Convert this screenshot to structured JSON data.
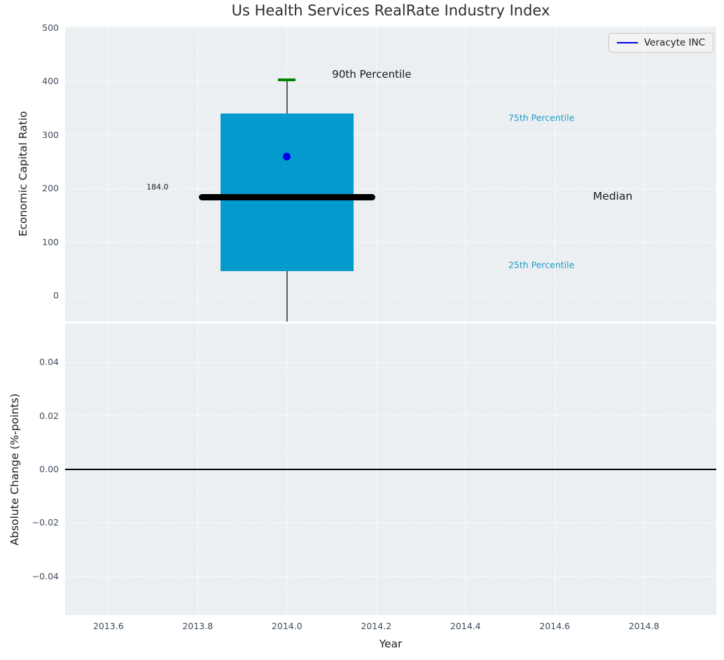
{
  "figure": {
    "title": "Us Health Services RealRate Industry Index",
    "background": "#ffffff",
    "axes_background": "#eceff1"
  },
  "legend": {
    "label": "Veracyte INC",
    "line_color": "#0000ff",
    "position": "upper right"
  },
  "chart_data": [
    {
      "type": "box",
      "title": "Us Health Services RealRate Industry Index",
      "ylabel": "Economic Capital Ratio",
      "xlim": [
        2013.503,
        2014.962
      ],
      "ylim": [
        -48.4,
        502.6
      ],
      "grid": true,
      "yticks": [
        0,
        100,
        200,
        300,
        400,
        500
      ],
      "ytick_labels": [
        "0",
        "100",
        "200",
        "300",
        "400",
        "500"
      ],
      "xticks": [
        2013.6,
        2013.8,
        2014.0,
        2014.2,
        2014.4,
        2014.6,
        2014.8
      ],
      "box": {
        "x": 2014.0,
        "box_halfwidth": 0.149,
        "median_line_halfwidth": 0.198,
        "cap_halfwidth": 0.0195,
        "q1": 46,
        "median": 184.0,
        "q3": 340,
        "p90": 403,
        "whisker_extends_below_axis": true,
        "median_label": "184.0",
        "box_color": "#049acd",
        "median_color": "#000000",
        "cap_color": "#008000",
        "whisker_color": "#5f5f5f"
      },
      "points": [
        {
          "name": "Veracyte INC",
          "x": 2014.0,
          "y": 260,
          "color": "#0000f0"
        }
      ],
      "annotations": [
        {
          "text": "90th Percentile",
          "x": 2014.19,
          "y": 413,
          "color": "#1a1a1a",
          "size": 15
        },
        {
          "text": "75th Percentile",
          "x": 2014.57,
          "y": 333,
          "color": "#1d9bc9",
          "size": 12.5
        },
        {
          "text": "Median",
          "x": 2014.73,
          "y": 186,
          "color": "#1a1a1a",
          "size": 15.5
        },
        {
          "text": "25th Percentile",
          "x": 2014.57,
          "y": 58,
          "color": "#1d9bc9",
          "size": 12.5
        },
        {
          "text": "184.0",
          "x": 2013.71,
          "y": 203,
          "color": "#1a1a1a",
          "size": 11
        }
      ]
    },
    {
      "type": "line",
      "ylabel": "Absolute Change (%-points)",
      "xlabel": "Year",
      "xlim": [
        2013.503,
        2014.962
      ],
      "ylim": [
        -0.0545,
        0.0545
      ],
      "grid": true,
      "yticks": [
        0.04,
        0.02,
        0.0,
        -0.02,
        -0.04
      ],
      "ytick_labels": [
        "0.04",
        "0.02",
        "0.00",
        "−0.02",
        "−0.04"
      ],
      "xticks": [
        2013.6,
        2013.8,
        2014.0,
        2014.2,
        2014.4,
        2014.6,
        2014.8
      ],
      "xtick_labels": [
        "2013.6",
        "2013.8",
        "2014.0",
        "2014.2",
        "2014.4",
        "2014.6",
        "2014.8"
      ],
      "zero_line": {
        "y": 0.0,
        "color": "#000000"
      },
      "series": []
    }
  ]
}
